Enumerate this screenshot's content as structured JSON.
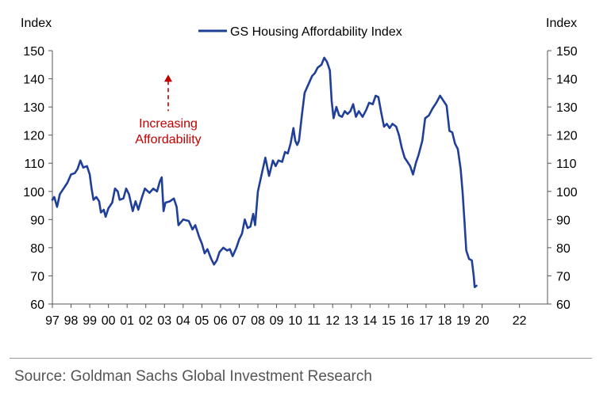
{
  "chart_data": {
    "type": "line",
    "title": "",
    "ylabel_left": "Index",
    "ylabel_right": "Index",
    "ylim": [
      60,
      150
    ],
    "yticks": [
      60,
      70,
      80,
      90,
      100,
      110,
      120,
      130,
      140,
      150
    ],
    "xlim": [
      1997,
      2023.5
    ],
    "xtick_labels": [
      {
        "pos": 1997,
        "label": "97"
      },
      {
        "pos": 1998,
        "label": "98"
      },
      {
        "pos": 1999,
        "label": "99"
      },
      {
        "pos": 2000,
        "label": "00"
      },
      {
        "pos": 2001,
        "label": "01"
      },
      {
        "pos": 2002,
        "label": "02"
      },
      {
        "pos": 2003,
        "label": "03"
      },
      {
        "pos": 2004,
        "label": "04"
      },
      {
        "pos": 2005,
        "label": "05"
      },
      {
        "pos": 2006,
        "label": "06"
      },
      {
        "pos": 2007,
        "label": "07"
      },
      {
        "pos": 2008,
        "label": "08"
      },
      {
        "pos": 2009,
        "label": "09"
      },
      {
        "pos": 2010,
        "label": "10"
      },
      {
        "pos": 2011,
        "label": "11"
      },
      {
        "pos": 2012,
        "label": "12"
      },
      {
        "pos": 2013,
        "label": "13"
      },
      {
        "pos": 2014,
        "label": "14"
      },
      {
        "pos": 2015,
        "label": "15"
      },
      {
        "pos": 2016,
        "label": "16"
      },
      {
        "pos": 2017,
        "label": "17"
      },
      {
        "pos": 2018,
        "label": "18"
      },
      {
        "pos": 2019,
        "label": "19"
      },
      {
        "pos": 2020,
        "label": "20"
      },
      {
        "pos": 2022,
        "label": "22"
      }
    ],
    "legend": {
      "position": "top-center"
    },
    "grid": false,
    "series": [
      {
        "name": "GS Housing Affordability Index",
        "color": "#1f3f99",
        "points": [
          [
            1997.0,
            97
          ],
          [
            1997.1,
            98
          ],
          [
            1997.25,
            94.5
          ],
          [
            1997.4,
            99
          ],
          [
            1997.6,
            101
          ],
          [
            1997.8,
            103
          ],
          [
            1998.0,
            106
          ],
          [
            1998.2,
            106.5
          ],
          [
            1998.35,
            108
          ],
          [
            1998.5,
            111
          ],
          [
            1998.65,
            108.5
          ],
          [
            1998.85,
            109
          ],
          [
            1999.0,
            106
          ],
          [
            1999.1,
            101
          ],
          [
            1999.2,
            97
          ],
          [
            1999.35,
            98
          ],
          [
            1999.5,
            96.5
          ],
          [
            1999.6,
            92.5
          ],
          [
            1999.75,
            93.5
          ],
          [
            1999.85,
            91
          ],
          [
            2000.0,
            94
          ],
          [
            2000.2,
            96
          ],
          [
            2000.35,
            101
          ],
          [
            2000.5,
            100
          ],
          [
            2000.6,
            97
          ],
          [
            2000.8,
            97.5
          ],
          [
            2000.95,
            101
          ],
          [
            2001.1,
            99
          ],
          [
            2001.3,
            93
          ],
          [
            2001.45,
            96.5
          ],
          [
            2001.6,
            93.5
          ],
          [
            2001.8,
            98
          ],
          [
            2001.95,
            101
          ],
          [
            2002.2,
            99.5
          ],
          [
            2002.4,
            101
          ],
          [
            2002.6,
            100
          ],
          [
            2002.75,
            103.5
          ],
          [
            2002.85,
            105
          ],
          [
            2002.95,
            93
          ],
          [
            2003.05,
            96
          ],
          [
            2003.3,
            96.5
          ],
          [
            2003.5,
            97.5
          ],
          [
            2003.65,
            94.5
          ],
          [
            2003.75,
            88
          ],
          [
            2004.0,
            90
          ],
          [
            2004.3,
            89.5
          ],
          [
            2004.5,
            86.5
          ],
          [
            2004.65,
            88
          ],
          [
            2004.85,
            84
          ],
          [
            2005.0,
            81.5
          ],
          [
            2005.15,
            78
          ],
          [
            2005.3,
            79.5
          ],
          [
            2005.5,
            76
          ],
          [
            2005.65,
            74
          ],
          [
            2005.8,
            75.5
          ],
          [
            2005.95,
            78.5
          ],
          [
            2006.15,
            80
          ],
          [
            2006.35,
            79
          ],
          [
            2006.5,
            79.5
          ],
          [
            2006.65,
            77
          ],
          [
            2006.85,
            80
          ],
          [
            2007.0,
            83
          ],
          [
            2007.15,
            85
          ],
          [
            2007.3,
            90
          ],
          [
            2007.45,
            87
          ],
          [
            2007.6,
            87.5
          ],
          [
            2007.75,
            92
          ],
          [
            2007.85,
            88
          ],
          [
            2008.0,
            100
          ],
          [
            2008.2,
            106
          ],
          [
            2008.4,
            112
          ],
          [
            2008.6,
            105.5
          ],
          [
            2008.8,
            111
          ],
          [
            2008.95,
            109
          ],
          [
            2009.1,
            111
          ],
          [
            2009.3,
            110.5
          ],
          [
            2009.45,
            114
          ],
          [
            2009.6,
            113.5
          ],
          [
            2009.75,
            117
          ],
          [
            2009.9,
            122.5
          ],
          [
            2010.0,
            118
          ],
          [
            2010.1,
            116.5
          ],
          [
            2010.2,
            118
          ],
          [
            2010.35,
            127
          ],
          [
            2010.5,
            135
          ],
          [
            2010.7,
            138
          ],
          [
            2010.9,
            141
          ],
          [
            2011.05,
            142
          ],
          [
            2011.2,
            144
          ],
          [
            2011.4,
            145
          ],
          [
            2011.55,
            147.5
          ],
          [
            2011.7,
            146
          ],
          [
            2011.85,
            143
          ],
          [
            2011.95,
            132
          ],
          [
            2012.05,
            126
          ],
          [
            2012.2,
            130
          ],
          [
            2012.35,
            127
          ],
          [
            2012.5,
            126.5
          ],
          [
            2012.65,
            128.5
          ],
          [
            2012.8,
            127.5
          ],
          [
            2012.95,
            128.5
          ],
          [
            2013.1,
            131
          ],
          [
            2013.25,
            126.5
          ],
          [
            2013.4,
            128.5
          ],
          [
            2013.6,
            126.5
          ],
          [
            2013.8,
            129
          ],
          [
            2013.95,
            131.5
          ],
          [
            2014.15,
            131
          ],
          [
            2014.3,
            134
          ],
          [
            2014.45,
            133.5
          ],
          [
            2014.6,
            128
          ],
          [
            2014.75,
            123
          ],
          [
            2014.9,
            124
          ],
          [
            2015.05,
            122.5
          ],
          [
            2015.2,
            124
          ],
          [
            2015.4,
            123
          ],
          [
            2015.55,
            120
          ],
          [
            2015.7,
            115.5
          ],
          [
            2015.85,
            112
          ],
          [
            2016.0,
            110.5
          ],
          [
            2016.15,
            109
          ],
          [
            2016.3,
            106
          ],
          [
            2016.45,
            110
          ],
          [
            2016.6,
            113
          ],
          [
            2016.8,
            118
          ],
          [
            2016.95,
            126
          ],
          [
            2017.15,
            127
          ],
          [
            2017.35,
            129.5
          ],
          [
            2017.55,
            131.5
          ],
          [
            2017.75,
            134
          ],
          [
            2017.9,
            132.5
          ],
          [
            2018.1,
            130.5
          ],
          [
            2018.25,
            121.5
          ],
          [
            2018.4,
            121
          ],
          [
            2018.55,
            117
          ],
          [
            2018.7,
            115
          ],
          [
            2018.85,
            108
          ],
          [
            2018.95,
            100
          ],
          [
            2019.05,
            90
          ],
          [
            2019.15,
            79
          ],
          [
            2019.3,
            76
          ],
          [
            2019.45,
            75.5
          ],
          [
            2019.55,
            70
          ],
          [
            2019.6,
            66
          ],
          [
            2019.7,
            66.5
          ]
        ]
      }
    ],
    "annotation": {
      "text_line1": "Increasing",
      "text_line2": "Affordability",
      "arrow_at": [
        2003.2,
        141.5
      ],
      "color": "#c00000"
    }
  },
  "footer": {
    "source": "Source: Goldman Sachs Global Investment Research"
  }
}
